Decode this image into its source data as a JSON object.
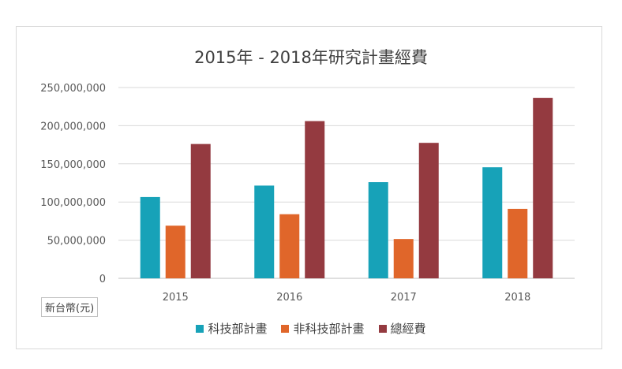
{
  "chart_data": {
    "type": "bar",
    "title": "2015年 - 2018年研究計畫經費",
    "unit_label": "新台幣(元)",
    "categories": [
      "2015",
      "2016",
      "2017",
      "2018"
    ],
    "series": [
      {
        "name": "科技部計畫",
        "color": "#17a2b8",
        "values": [
          106500000,
          121500000,
          126000000,
          145500000
        ]
      },
      {
        "name": "非科技部計畫",
        "color": "#e0662a",
        "values": [
          69000000,
          84000000,
          51500000,
          91000000
        ]
      },
      {
        "name": "總經費",
        "color": "#943a40",
        "values": [
          176000000,
          206000000,
          177500000,
          236500000
        ]
      }
    ],
    "ylim": [
      0,
      250000000
    ],
    "yticks": [
      0,
      50000000,
      100000000,
      150000000,
      200000000,
      250000000
    ],
    "ytick_labels": [
      "0",
      "50,000,000",
      "100,000,000",
      "150,000,000",
      "200,000,000",
      "250,000,000"
    ],
    "grid": true,
    "legend_position": "bottom"
  }
}
